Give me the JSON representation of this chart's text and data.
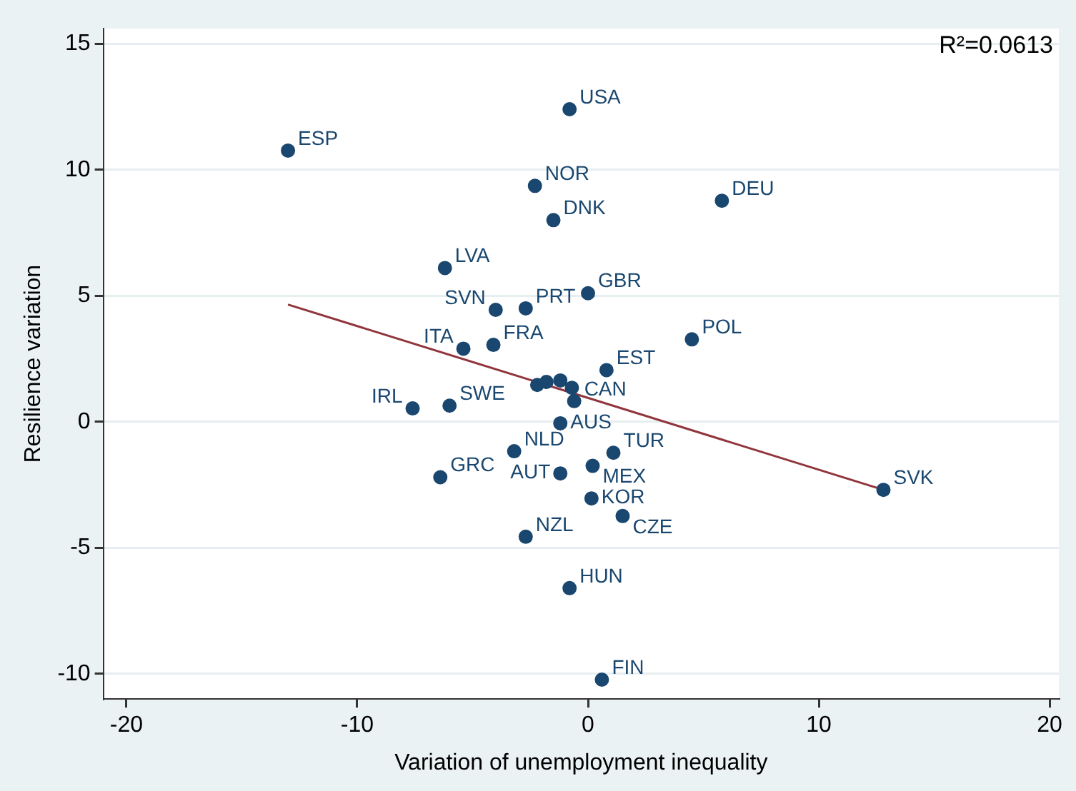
{
  "chart_data": {
    "type": "scatter",
    "xlabel": "Variation of unemployment inequality",
    "ylabel": "Resilience variation",
    "annotations": [
      "R²=0.0613"
    ],
    "xlim": [
      -21,
      20.4
    ],
    "xticks": [
      -20,
      -10,
      0,
      10,
      20
    ],
    "ylim": [
      -11,
      15.6
    ],
    "yticks": [
      -10,
      -5,
      0,
      5,
      10,
      15
    ],
    "grid": "y",
    "legend": false,
    "series": [
      {
        "marker": "circle",
        "color": "#1a476f",
        "x": [
          -13.0,
          -0.8,
          -2.3,
          -1.5,
          5.8,
          -6.2,
          0,
          -4.0,
          -2.7,
          -5.4,
          -4.1,
          4.5,
          0.8,
          -2.2,
          -1.8,
          -1.2,
          -0.7,
          -0.6,
          -1.2,
          -7.6,
          -6.0,
          -3.2,
          -6.4,
          -1.2,
          0.2,
          1.1,
          0.15,
          1.5,
          -2.7,
          -0.8,
          0.6,
          12.8
        ],
        "values": [
          10.76,
          12.4,
          9.36,
          8.0,
          8.77,
          6.1,
          5.1,
          4.44,
          4.5,
          2.9,
          3.05,
          3.27,
          2.05,
          1.46,
          1.58,
          1.64,
          1.35,
          0.82,
          -0.06,
          0.53,
          0.64,
          -1.17,
          -2.2,
          -2.05,
          -1.75,
          -1.23,
          -3.04,
          -3.74,
          -4.56,
          -6.6,
          -10.23,
          -2.7
        ],
        "value_labels": [
          "ESP",
          "USA",
          "NOR",
          "DNK",
          "DEU",
          "LVA",
          "GBR",
          "SVN",
          "PRT",
          "ITA",
          "FRA",
          "POL",
          "EST",
          null,
          null,
          null,
          null,
          "CAN",
          "AUS",
          "IRL",
          "SWE",
          "NLD",
          "GRC",
          "AUT",
          "MEX",
          "TUR",
          "KOR",
          "CZE",
          "NZL",
          "HUN",
          "FIN",
          "SVK"
        ]
      },
      {
        "type": "line",
        "color": "#90353b",
        "x": [
          -13.0,
          12.8
        ],
        "values": [
          4.65,
          -2.7
        ]
      }
    ]
  }
}
